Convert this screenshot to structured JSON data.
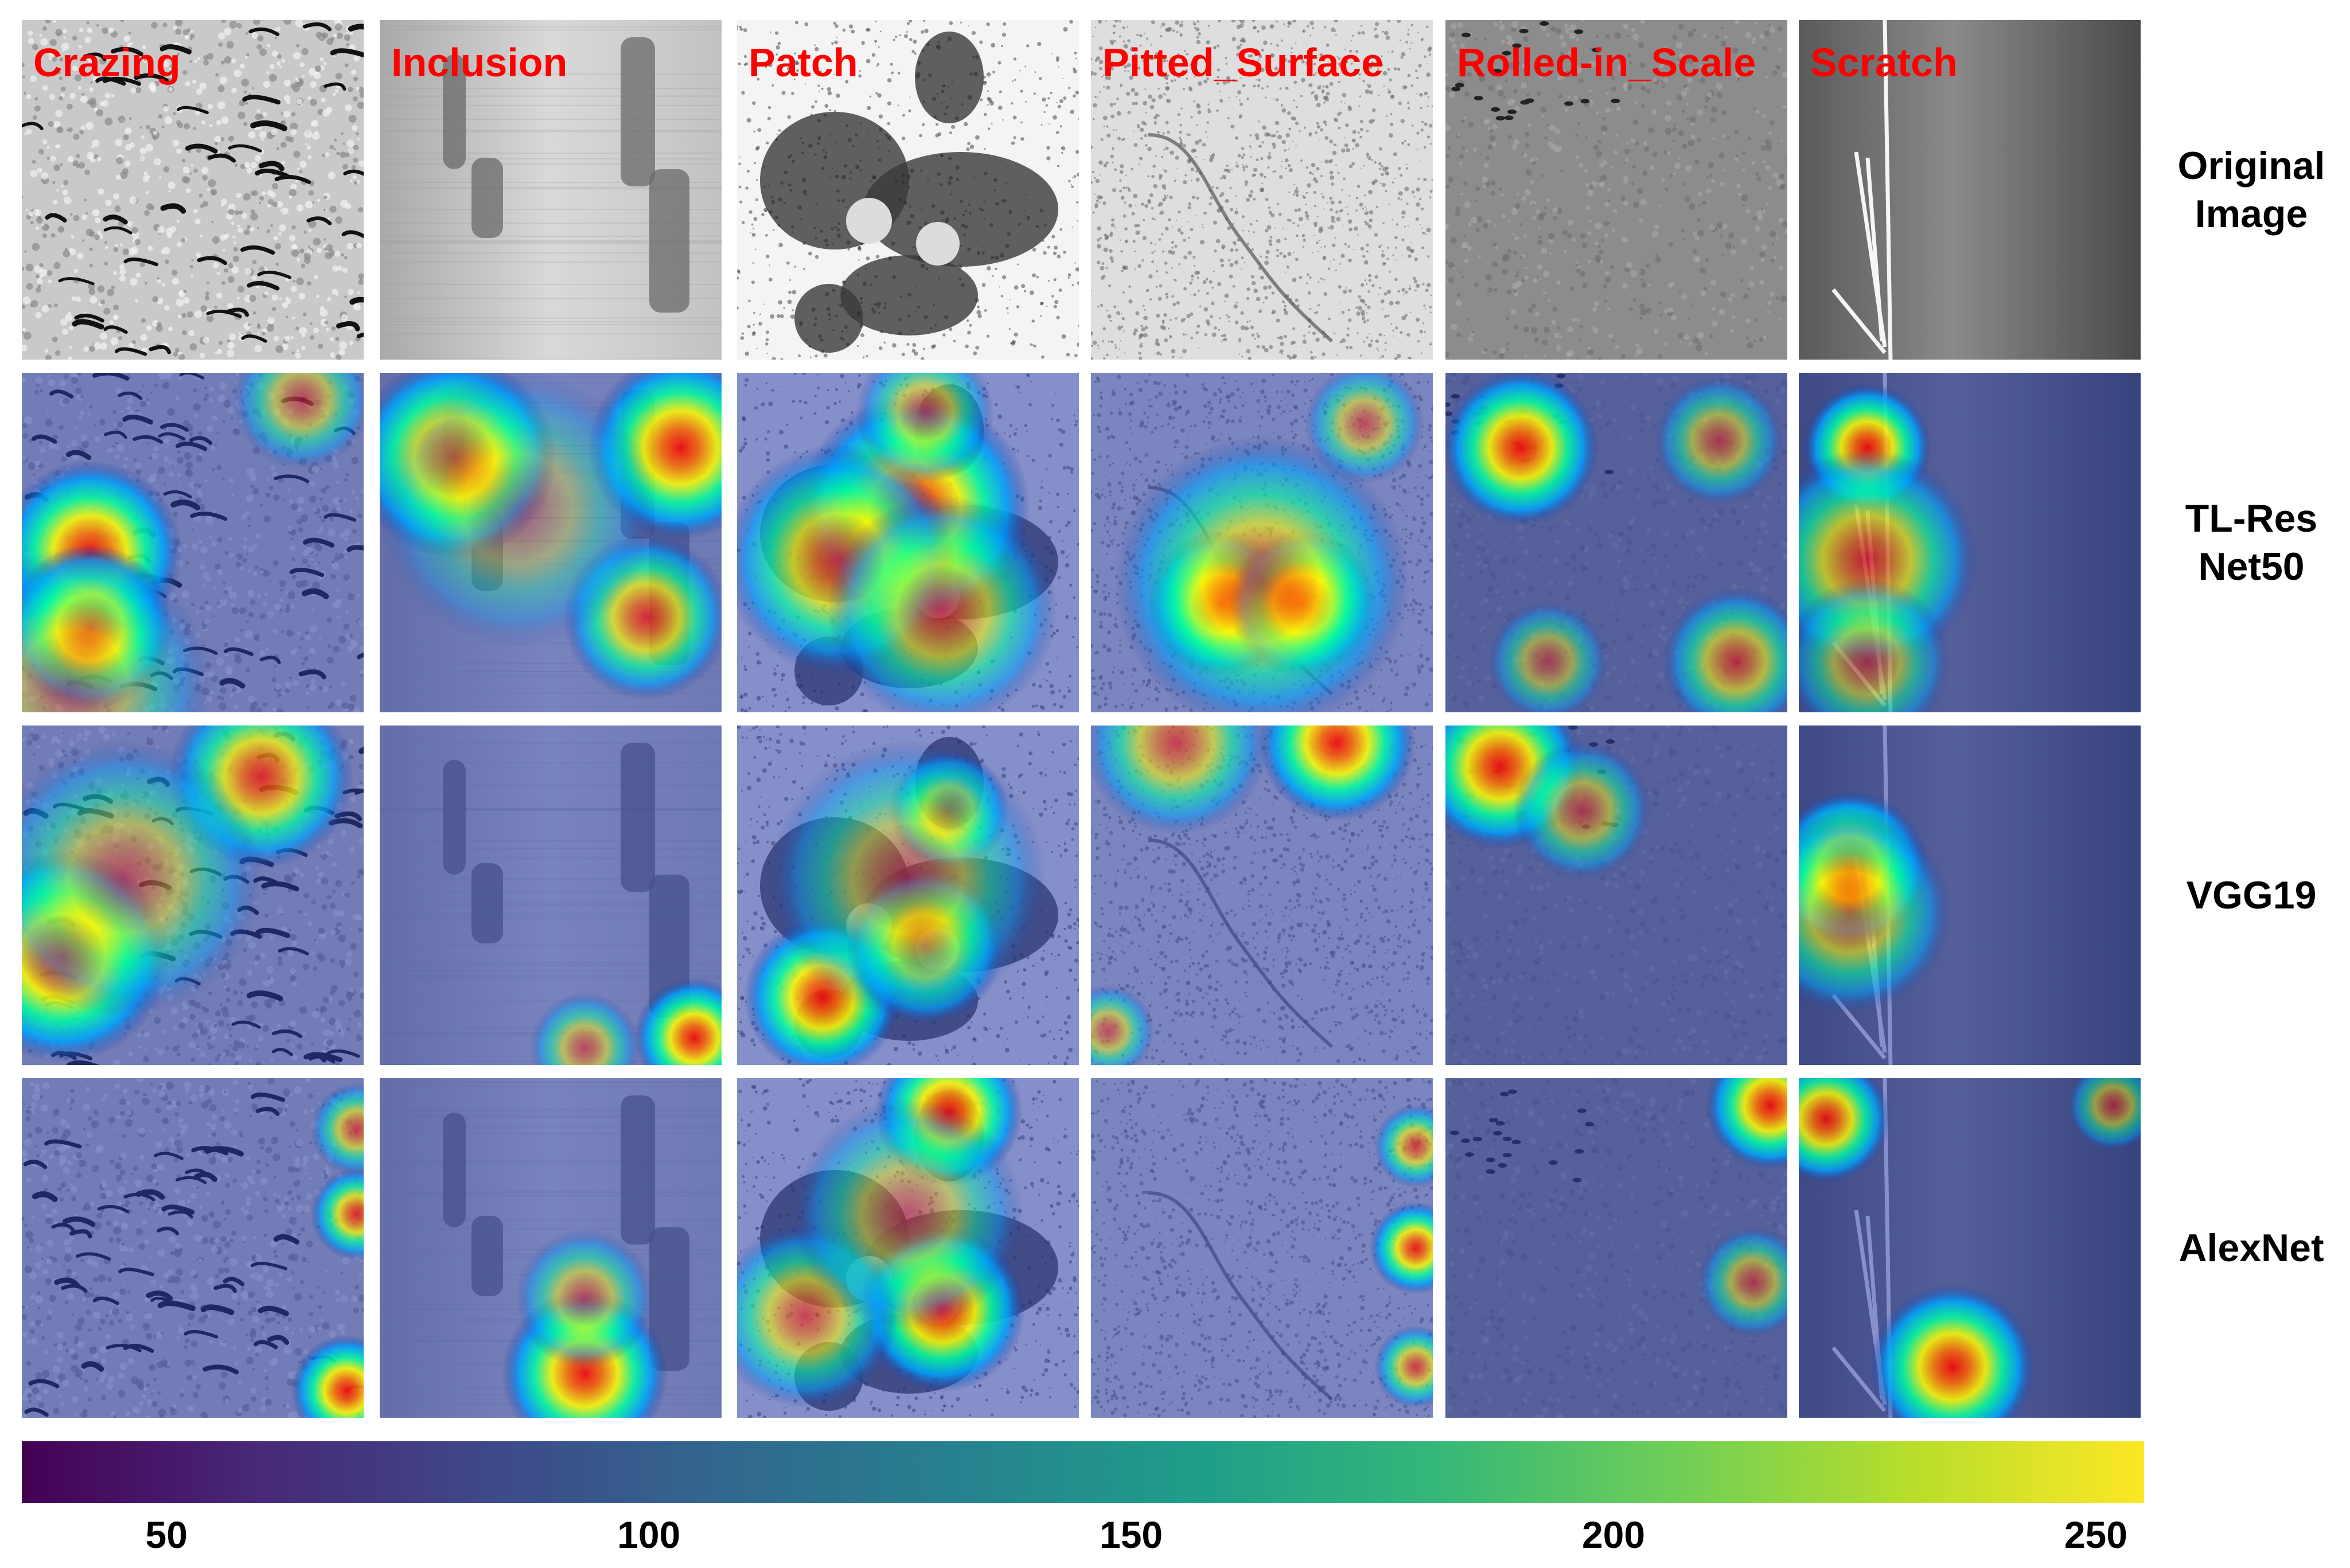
{
  "columns": [
    {
      "label": "Crazing",
      "texture": "crazing"
    },
    {
      "label": "Inclusion",
      "texture": "inclusion"
    },
    {
      "label": "Patch",
      "texture": "patch"
    },
    {
      "label": "Pitted_Surface",
      "texture": "pitted"
    },
    {
      "label": "Rolled-in_Scale",
      "texture": "rolled"
    },
    {
      "label": "Scratch",
      "texture": "scratch"
    }
  ],
  "rows": [
    {
      "label_lines": [
        "Original",
        "Image"
      ],
      "overlay": false
    },
    {
      "label_lines": [
        "TL-Res",
        "Net50"
      ],
      "overlay": true
    },
    {
      "label_lines": [
        "VGG19"
      ],
      "overlay": true
    },
    {
      "label_lines": [
        "AlexNet"
      ],
      "overlay": true
    }
  ],
  "heatmaps": {
    "TL-ResNet50": [
      [
        [
          0.2,
          0.53,
          0.95,
          0.2
        ],
        [
          0.2,
          0.75,
          0.85,
          0.18
        ],
        [
          0.82,
          0.08,
          0.45,
          0.15
        ],
        [
          0.15,
          0.92,
          0.35,
          0.3
        ]
      ],
      [
        [
          0.22,
          0.25,
          0.95,
          0.22
        ],
        [
          0.88,
          0.22,
          0.95,
          0.2
        ],
        [
          0.78,
          0.72,
          0.7,
          0.18
        ],
        [
          0.4,
          0.4,
          0.25,
          0.3
        ]
      ],
      [
        [
          0.52,
          0.4,
          0.95,
          0.25
        ],
        [
          0.3,
          0.55,
          0.7,
          0.25
        ],
        [
          0.55,
          0.12,
          0.5,
          0.15
        ],
        [
          0.6,
          0.7,
          0.55,
          0.25
        ]
      ],
      [
        [
          0.38,
          0.68,
          0.95,
          0.16
        ],
        [
          0.62,
          0.68,
          0.9,
          0.16
        ],
        [
          0.8,
          0.15,
          0.45,
          0.13
        ],
        [
          0.5,
          0.62,
          0.6,
          0.32
        ]
      ],
      [
        [
          0.22,
          0.22,
          0.95,
          0.17
        ],
        [
          0.8,
          0.2,
          0.45,
          0.14
        ],
        [
          0.85,
          0.85,
          0.55,
          0.16
        ],
        [
          0.3,
          0.85,
          0.4,
          0.13
        ]
      ],
      [
        [
          0.2,
          0.22,
          0.95,
          0.14
        ],
        [
          0.2,
          0.55,
          0.65,
          0.24
        ],
        [
          0.2,
          0.85,
          0.45,
          0.18
        ]
      ]
    ],
    "VGG19": [
      [
        [
          0.12,
          0.68,
          0.95,
          0.23
        ],
        [
          0.7,
          0.15,
          0.75,
          0.2
        ],
        [
          0.3,
          0.45,
          0.4,
          0.3
        ]
      ],
      [
        [
          0.92,
          0.92,
          0.95,
          0.13
        ],
        [
          0.6,
          0.95,
          0.45,
          0.12
        ]
      ],
      [
        [
          0.25,
          0.8,
          0.95,
          0.17
        ],
        [
          0.55,
          0.65,
          0.75,
          0.17
        ],
        [
          0.62,
          0.25,
          0.7,
          0.13
        ],
        [
          0.5,
          0.45,
          0.4,
          0.3
        ]
      ],
      [
        [
          0.72,
          0.05,
          0.95,
          0.17
        ],
        [
          0.25,
          0.05,
          0.55,
          0.2
        ],
        [
          0.05,
          0.9,
          0.45,
          0.1
        ]
      ],
      [
        [
          0.16,
          0.12,
          0.95,
          0.18
        ],
        [
          0.4,
          0.25,
          0.45,
          0.15
        ]
      ],
      [
        [
          0.15,
          0.42,
          0.95,
          0.17
        ],
        [
          0.15,
          0.55,
          0.55,
          0.22
        ]
      ]
    ],
    "AlexNet": [
      [
        [
          0.98,
          0.4,
          0.75,
          0.1
        ],
        [
          0.95,
          0.92,
          0.9,
          0.12
        ],
        [
          0.98,
          0.15,
          0.55,
          0.1
        ]
      ],
      [
        [
          0.6,
          0.87,
          0.95,
          0.18
        ],
        [
          0.6,
          0.65,
          0.45,
          0.15
        ]
      ],
      [
        [
          0.62,
          0.1,
          0.95,
          0.16
        ],
        [
          0.6,
          0.68,
          0.95,
          0.18
        ],
        [
          0.2,
          0.7,
          0.55,
          0.2
        ],
        [
          0.5,
          0.4,
          0.4,
          0.25
        ]
      ],
      [
        [
          0.95,
          0.5,
          0.85,
          0.1
        ],
        [
          0.95,
          0.2,
          0.6,
          0.09
        ],
        [
          0.95,
          0.85,
          0.6,
          0.09
        ]
      ],
      [
        [
          0.95,
          0.08,
          0.95,
          0.14
        ],
        [
          0.9,
          0.6,
          0.45,
          0.12
        ]
      ],
      [
        [
          0.08,
          0.12,
          0.85,
          0.14
        ],
        [
          0.45,
          0.85,
          0.95,
          0.18
        ],
        [
          0.92,
          0.08,
          0.45,
          0.1
        ]
      ]
    ]
  },
  "colorbar": {
    "colormap": "viridis",
    "range": [
      35,
      255
    ],
    "ticks": [
      "50",
      "100",
      "150",
      "200",
      "250"
    ],
    "tick_values": [
      50,
      100,
      150,
      200,
      250
    ],
    "stops": [
      "#440154",
      "#482878",
      "#3e4989",
      "#31688e",
      "#26828e",
      "#1f9e89",
      "#35b779",
      "#6ece58",
      "#b5de2b",
      "#fde725"
    ]
  }
}
